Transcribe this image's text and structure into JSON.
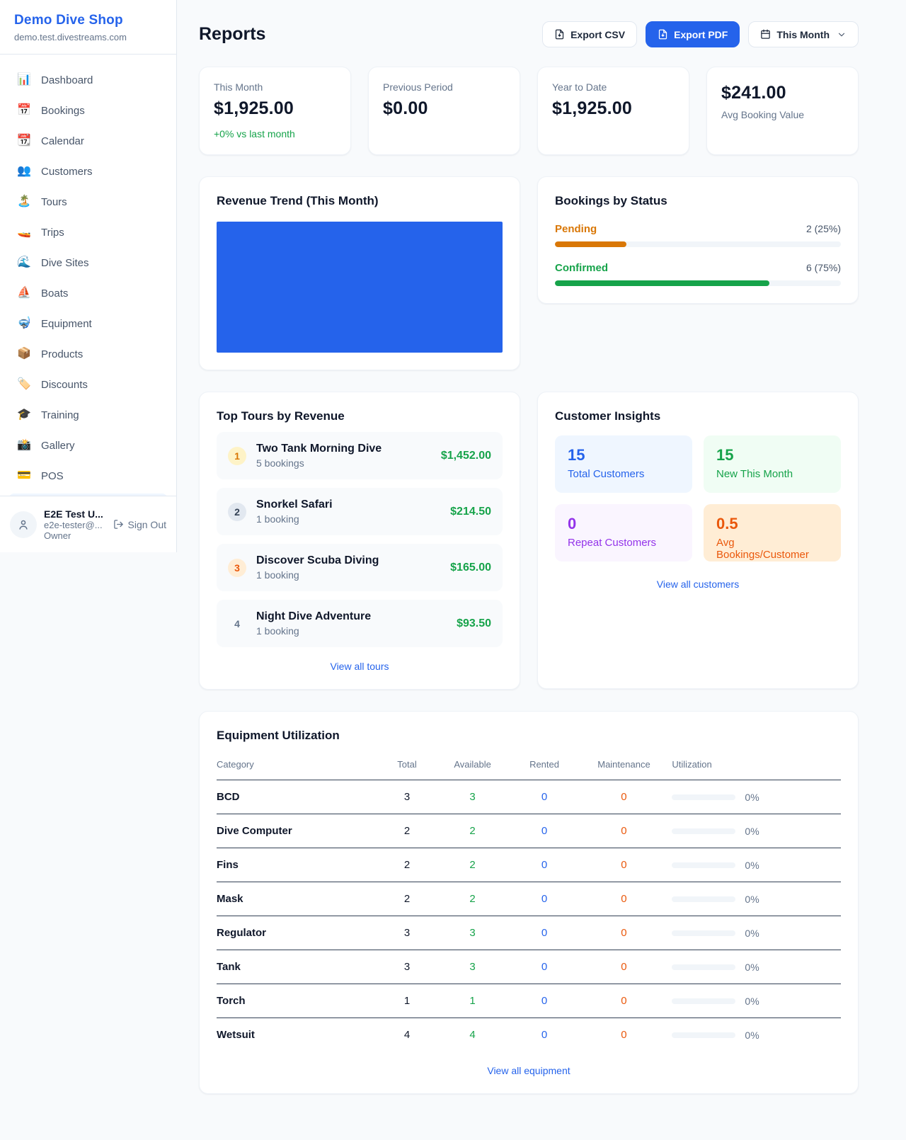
{
  "colors": {
    "accent": "#2563eb",
    "green": "#16a34a",
    "amber": "#d97706",
    "orange": "#ea580c",
    "purple": "#9333ea",
    "page_bg": "#f8fafc",
    "table_border": "#334155"
  },
  "sidebar": {
    "title": "Demo Dive Shop",
    "subtitle": "demo.test.divestreams.com",
    "nav": [
      {
        "icon": "📊",
        "label": "Dashboard"
      },
      {
        "icon": "📅",
        "label": "Bookings"
      },
      {
        "icon": "📆",
        "label": "Calendar"
      },
      {
        "icon": "👥",
        "label": "Customers"
      },
      {
        "icon": "🏝️",
        "label": "Tours"
      },
      {
        "icon": "🚤",
        "label": "Trips"
      },
      {
        "icon": "🌊",
        "label": "Dive Sites"
      },
      {
        "icon": "⛵",
        "label": "Boats"
      },
      {
        "icon": "🤿",
        "label": "Equipment"
      },
      {
        "icon": "📦",
        "label": "Products"
      },
      {
        "icon": "🏷️",
        "label": "Discounts"
      },
      {
        "icon": "🎓",
        "label": "Training"
      },
      {
        "icon": "📸",
        "label": "Gallery"
      },
      {
        "icon": "💳",
        "label": "POS"
      }
    ],
    "user": {
      "name": "E2E Test U...",
      "email": "e2e-tester@...",
      "role": "Owner",
      "sign_out": "Sign Out"
    }
  },
  "header": {
    "title": "Reports",
    "export_csv_label": "Export CSV",
    "export_pdf_label": "Export PDF",
    "period_label": "This Month"
  },
  "stats": [
    {
      "label": "This Month",
      "value": "$1,925.00",
      "delta": "+0% vs last month"
    },
    {
      "label": "Previous Period",
      "value": "$0.00"
    },
    {
      "label": "Year to Date",
      "value": "$1,925.00"
    },
    {
      "label": "Avg Booking Value",
      "value": "$241.00"
    }
  ],
  "revenue_trend": {
    "title": "Revenue Trend (This Month)",
    "bar_color": "#2563eb"
  },
  "bookings_by_status": {
    "title": "Bookings by Status",
    "rows": [
      {
        "label": "Pending",
        "value": "2 (25%)",
        "count": 2,
        "percent": 25,
        "color": "#d97706"
      },
      {
        "label": "Confirmed",
        "value": "6 (75%)",
        "count": 6,
        "percent": 75,
        "color": "#16a34a"
      }
    ]
  },
  "top_tours": {
    "title": "Top Tours by Revenue",
    "link": "View all tours",
    "items": [
      {
        "rank": "1",
        "name": "Two Tank Morning Dive",
        "bookings": "5 bookings",
        "amount": "$1,452.00"
      },
      {
        "rank": "2",
        "name": "Snorkel Safari",
        "bookings": "1 booking",
        "amount": "$214.50"
      },
      {
        "rank": "3",
        "name": "Discover Scuba Diving",
        "bookings": "1 booking",
        "amount": "$165.00"
      },
      {
        "rank": "4",
        "name": "Night Dive Adventure",
        "bookings": "1 booking",
        "amount": "$93.50"
      }
    ]
  },
  "customer_insights": {
    "title": "Customer Insights",
    "link": "View all customers",
    "tiles": [
      {
        "value": "15",
        "label": "Total Customers",
        "bg": "#eff6ff",
        "color": "#2563eb"
      },
      {
        "value": "15",
        "label": "New This Month",
        "bg": "#f0fdf4",
        "color": "#16a34a"
      },
      {
        "value": "0",
        "label": "Repeat Customers",
        "bg": "#faf5ff",
        "color": "#9333ea"
      },
      {
        "value": "0.5",
        "label": "Avg Bookings/Customer",
        "bg": "#ffedd5",
        "color": "#ea580c"
      }
    ]
  },
  "equipment": {
    "title": "Equipment Utilization",
    "link": "View all equipment",
    "columns": [
      "Category",
      "Total",
      "Available",
      "Rented",
      "Maintenance",
      "Utilization"
    ],
    "rows": [
      {
        "category": "BCD",
        "total": "3",
        "available": "3",
        "rented": "0",
        "maintenance": "0",
        "utilization": "0%"
      },
      {
        "category": "Dive Computer",
        "total": "2",
        "available": "2",
        "rented": "0",
        "maintenance": "0",
        "utilization": "0%"
      },
      {
        "category": "Fins",
        "total": "2",
        "available": "2",
        "rented": "0",
        "maintenance": "0",
        "utilization": "0%"
      },
      {
        "category": "Mask",
        "total": "2",
        "available": "2",
        "rented": "0",
        "maintenance": "0",
        "utilization": "0%"
      },
      {
        "category": "Regulator",
        "total": "3",
        "available": "3",
        "rented": "0",
        "maintenance": "0",
        "utilization": "0%"
      },
      {
        "category": "Tank",
        "total": "3",
        "available": "3",
        "rented": "0",
        "maintenance": "0",
        "utilization": "0%"
      },
      {
        "category": "Torch",
        "total": "1",
        "available": "1",
        "rented": "0",
        "maintenance": "0",
        "utilization": "0%"
      },
      {
        "category": "Wetsuit",
        "total": "4",
        "available": "4",
        "rented": "0",
        "maintenance": "0",
        "utilization": "0%"
      }
    ]
  }
}
